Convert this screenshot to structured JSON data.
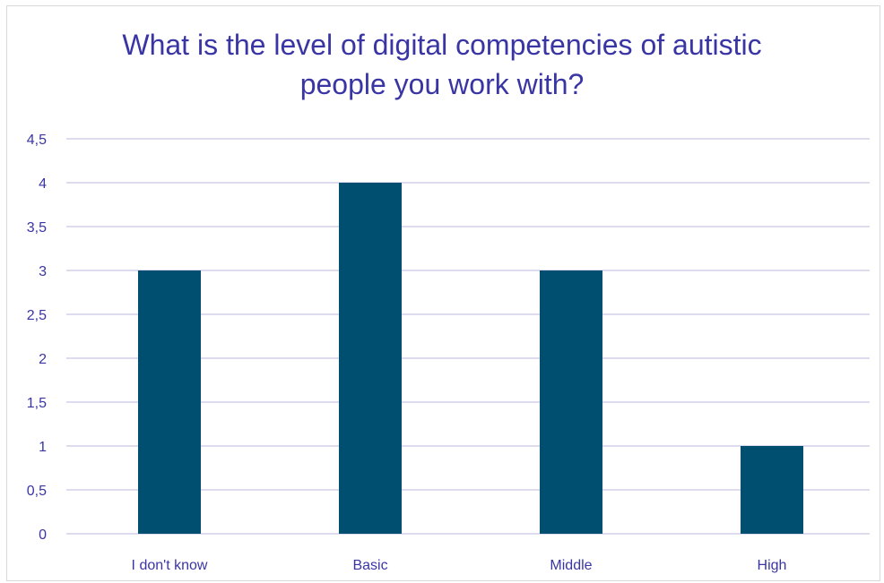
{
  "chart_data": {
    "type": "bar",
    "title": "What is the level of digital competencies of autistic\npeople you work with?",
    "categories": [
      "I don't know",
      "Basic",
      "Middle",
      "High"
    ],
    "values": [
      3,
      4,
      3,
      1
    ],
    "ylim": [
      0,
      4.5
    ],
    "yticks": [
      "0",
      "0,5",
      "1",
      "1,5",
      "2",
      "2,5",
      "3",
      "3,5",
      "4",
      "4,5"
    ],
    "ytick_values": [
      0,
      0.5,
      1,
      1.5,
      2,
      2.5,
      3,
      3.5,
      4,
      4.5
    ],
    "grid": true,
    "legend": "none",
    "colors": {
      "bar": "#004f71",
      "grid": "#b8b8dd",
      "axis_text": "#3a35a4",
      "title": "#3a35a4"
    }
  }
}
